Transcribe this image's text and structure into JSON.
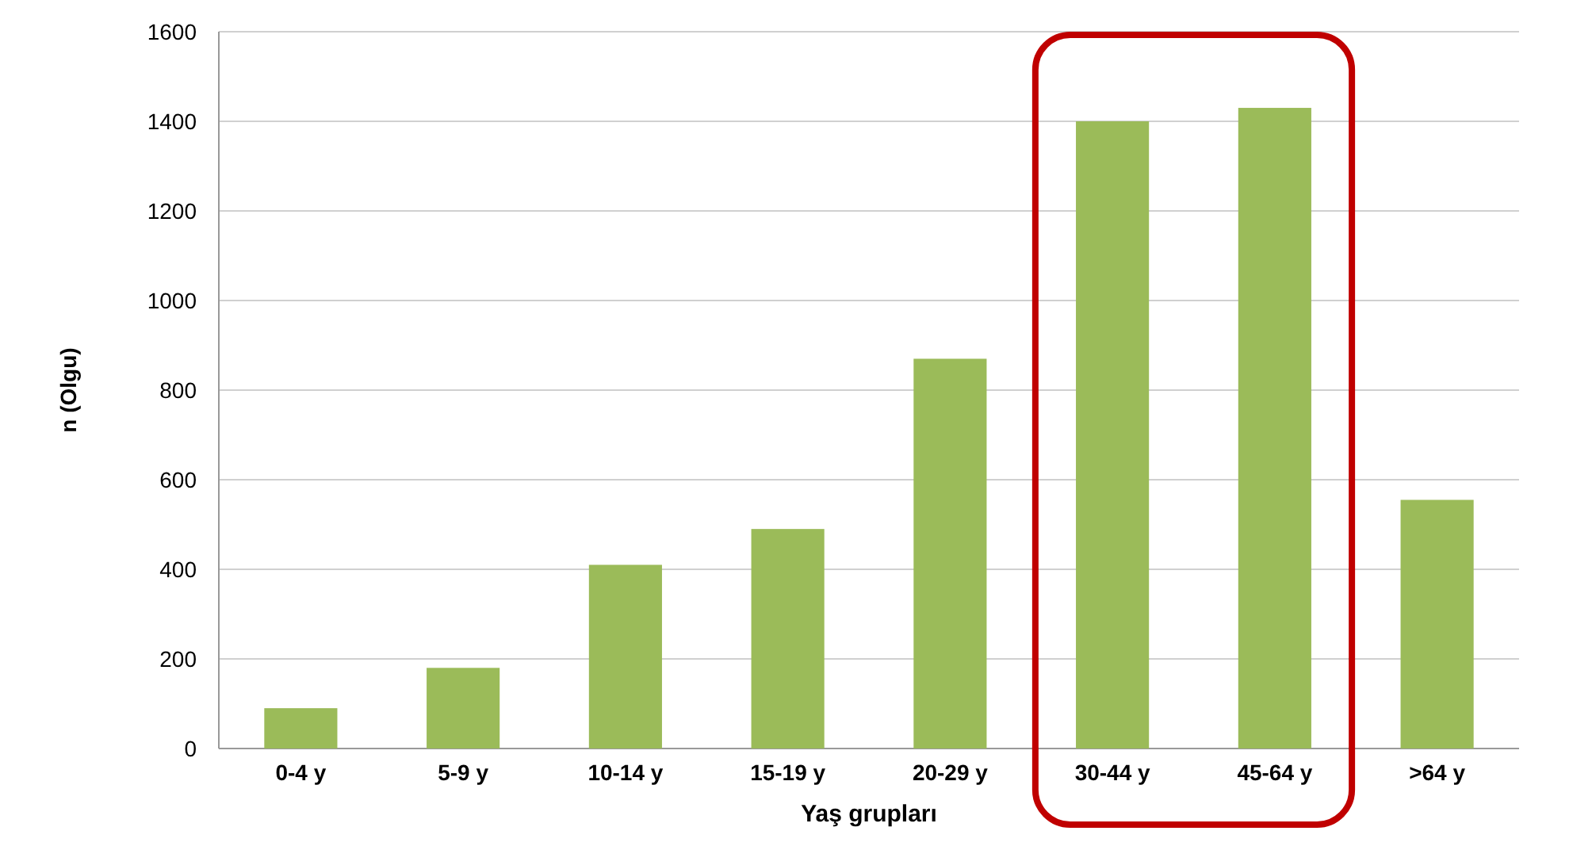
{
  "chart_data": {
    "type": "bar",
    "xlabel": "Yaş grupları",
    "ylabel": "n (Olgu)",
    "categories": [
      "0-4 y",
      "5-9 y",
      "10-14 y",
      "15-19 y",
      "20-29 y",
      "30-44 y",
      "45-64 y",
      ">64 y"
    ],
    "values": [
      90,
      180,
      410,
      490,
      870,
      1400,
      1430,
      555
    ],
    "color": "#9bbb59",
    "ylim": [
      0,
      1600
    ],
    "yticks": [
      0,
      200,
      400,
      600,
      800,
      1000,
      1200,
      1400,
      1600
    ],
    "grid": "y"
  }
}
